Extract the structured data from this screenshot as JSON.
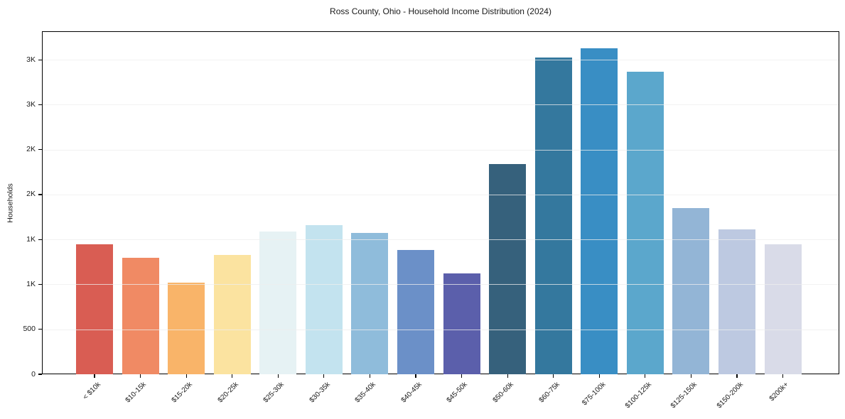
{
  "title": "Ross County, Ohio - Household Income Distribution (2024)",
  "chart_data": {
    "type": "bar",
    "title": "Ross County, Ohio - Household Income Distribution (2024)",
    "xlabel": "",
    "ylabel": "Households",
    "categories": [
      "< $10k",
      "$10-15k",
      "$15-20k",
      "$20-25k",
      "$25-30k",
      "$30-35k",
      "$35-40k",
      "$40-45k",
      "$45-50k",
      "$50-60k",
      "$60-75k",
      "$75-100k",
      "$100-125k",
      "$125-150k",
      "$150-200k",
      "$200k+"
    ],
    "values": [
      1450,
      1300,
      1020,
      1330,
      1590,
      1660,
      1570,
      1385,
      1120,
      2340,
      3525,
      3630,
      3370,
      1850,
      1610,
      1445
    ],
    "bar_colors": [
      "#d95d53",
      "#f08a64",
      "#f9b469",
      "#fbe3a0",
      "#e6f2f4",
      "#c3e3ef",
      "#8fbcdb",
      "#6b90c8",
      "#5b5fab",
      "#36617c",
      "#34789e",
      "#398ec4",
      "#5ba7cc",
      "#93b5d6",
      "#bdc9e1",
      "#d9dbe8"
    ],
    "ylim": [
      0,
      3818
    ],
    "yticks": [
      {
        "value": 0,
        "label": "0"
      },
      {
        "value": 500,
        "label": "500"
      },
      {
        "value": 1000,
        "label": "1K"
      },
      {
        "value": 1500,
        "label": "1K"
      },
      {
        "value": 2000,
        "label": "2K"
      },
      {
        "value": 2500,
        "label": "2K"
      },
      {
        "value": 3000,
        "label": "3K"
      },
      {
        "value": 3500,
        "label": "3K"
      }
    ],
    "grid": "horizontal",
    "legend": "none",
    "colors": {
      "grid": "#e9e9e9",
      "grid_on_bars": "rgba(238,238,238,0.75)",
      "spine": "#000000",
      "text": "#1a1a1a",
      "background": "#ffffff"
    }
  }
}
